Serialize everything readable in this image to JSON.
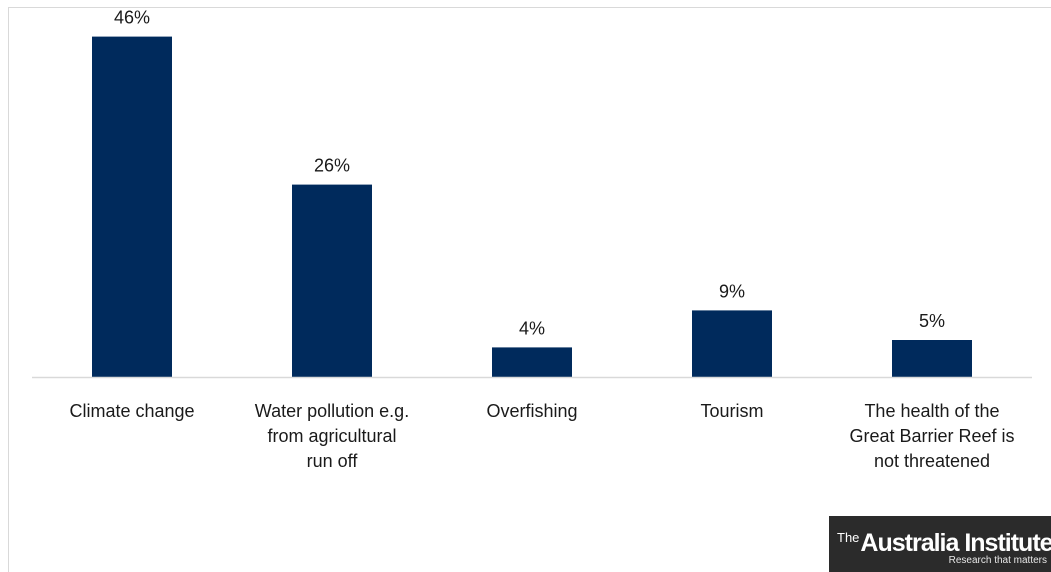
{
  "chart_data": {
    "type": "bar",
    "categories": [
      [
        "Climate change"
      ],
      [
        "Water pollution e.g.",
        "from agricultural",
        "run off"
      ],
      [
        "Overfishing"
      ],
      [
        "Tourism"
      ],
      [
        "The health of the",
        "Great Barrier Reef is",
        "not threatened"
      ]
    ],
    "values": [
      46,
      26,
      4,
      9,
      5
    ],
    "data_labels": [
      "46%",
      "26%",
      "4%",
      "9%",
      "5%"
    ],
    "unit": "%",
    "ylim": [
      0,
      50
    ],
    "grid": false,
    "bar_color": "#002a5c",
    "title": "",
    "xlabel": "",
    "ylabel": ""
  },
  "logo": {
    "the": "The",
    "name": "Australia Institute",
    "tagline": "Research that matters",
    "background": "#2b2b2b"
  }
}
